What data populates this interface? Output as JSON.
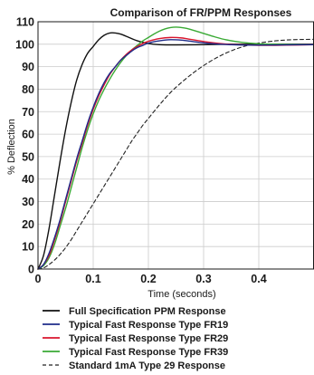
{
  "chart_data": {
    "type": "line",
    "title": "Comparison of FR/PPM Responses",
    "xlabel": "Time (seconds)",
    "ylabel": "% Deflection",
    "xlim": [
      0,
      0.5
    ],
    "ylim": [
      0,
      110
    ],
    "x_ticks": [
      0,
      0.1,
      0.2,
      0.3,
      0.4
    ],
    "x_tick_labels": [
      "0",
      "0.1",
      "0.2",
      "0.3",
      "0.4"
    ],
    "y_ticks": [
      0,
      10,
      20,
      30,
      40,
      50,
      60,
      70,
      80,
      90,
      100,
      110
    ],
    "y_tick_labels": [
      "0",
      "10",
      "20",
      "30",
      "40",
      "50",
      "60",
      "70",
      "80",
      "90",
      "100",
      "110"
    ],
    "grid": true,
    "legend_position": "bottom",
    "series": [
      {
        "name": "Full Specification PPM Response",
        "color": "#111111",
        "dash": "solid",
        "x": [
          0,
          0.01,
          0.02,
          0.03,
          0.04,
          0.05,
          0.06,
          0.07,
          0.08,
          0.09,
          0.1,
          0.11,
          0.12,
          0.13,
          0.14,
          0.15,
          0.16,
          0.18,
          0.2,
          0.22,
          0.25,
          0.3,
          0.35,
          0.4,
          0.45,
          0.5
        ],
        "y": [
          0,
          6,
          18,
          33,
          48,
          62,
          74,
          84,
          91,
          96,
          99,
          102,
          104,
          105,
          105,
          104.5,
          103.5,
          101.5,
          100.3,
          99.8,
          99.7,
          99.8,
          100,
          100,
          100,
          100
        ]
      },
      {
        "name": "Typical Fast Response Type FR19",
        "color": "#1f2d8a",
        "dash": "solid",
        "x": [
          0,
          0.01,
          0.02,
          0.03,
          0.04,
          0.05,
          0.06,
          0.07,
          0.08,
          0.09,
          0.1,
          0.11,
          0.12,
          0.13,
          0.14,
          0.15,
          0.16,
          0.17,
          0.18,
          0.19,
          0.2,
          0.22,
          0.24,
          0.26,
          0.28,
          0.3,
          0.33,
          0.36,
          0.4,
          0.45,
          0.5
        ],
        "y": [
          0,
          2,
          7,
          14,
          22,
          31,
          40,
          49,
          57,
          65,
          72,
          78,
          83,
          87,
          90,
          93,
          95,
          97,
          98.5,
          99.5,
          100.5,
          101.5,
          102,
          101.8,
          101.2,
          100.6,
          100,
          99.7,
          99.6,
          99.7,
          99.8
        ]
      },
      {
        "name": "Typical Fast Response Type FR29",
        "color": "#d9162e",
        "dash": "solid",
        "x": [
          0,
          0.01,
          0.02,
          0.03,
          0.04,
          0.05,
          0.06,
          0.07,
          0.08,
          0.09,
          0.1,
          0.11,
          0.12,
          0.13,
          0.14,
          0.15,
          0.16,
          0.17,
          0.18,
          0.19,
          0.2,
          0.22,
          0.24,
          0.26,
          0.28,
          0.3,
          0.33,
          0.36,
          0.4,
          0.45,
          0.5
        ],
        "y": [
          0,
          2,
          6,
          13,
          21,
          30,
          39,
          48,
          56,
          64,
          71,
          77,
          82,
          86.5,
          90,
          93,
          95.5,
          97.5,
          99,
          100.3,
          101.3,
          102.5,
          103,
          102.8,
          102,
          101.2,
          100.3,
          99.8,
          99.5,
          99.6,
          99.8
        ]
      },
      {
        "name": "Typical Fast Response Type FR39",
        "color": "#3aaa35",
        "dash": "solid",
        "x": [
          0,
          0.01,
          0.02,
          0.03,
          0.04,
          0.05,
          0.06,
          0.07,
          0.08,
          0.09,
          0.1,
          0.11,
          0.12,
          0.13,
          0.14,
          0.15,
          0.16,
          0.17,
          0.18,
          0.19,
          0.2,
          0.21,
          0.22,
          0.23,
          0.24,
          0.25,
          0.26,
          0.27,
          0.28,
          0.3,
          0.32,
          0.34,
          0.37,
          0.4,
          0.45,
          0.5
        ],
        "y": [
          0,
          1.5,
          5,
          11,
          19,
          27,
          36,
          45,
          54,
          62,
          69,
          75,
          80,
          84.5,
          88.5,
          92,
          95,
          97.5,
          99.5,
          101.5,
          103,
          104.5,
          105.8,
          106.8,
          107.4,
          107.6,
          107.4,
          107,
          106.3,
          104.8,
          103.3,
          102,
          100.8,
          100.2,
          99.9,
          99.8
        ]
      },
      {
        "name": "Standard 1mA Type 29 Response",
        "color": "#222222",
        "dash": "dashed",
        "x": [
          0,
          0.01,
          0.02,
          0.03,
          0.04,
          0.05,
          0.06,
          0.07,
          0.08,
          0.09,
          0.1,
          0.11,
          0.12,
          0.13,
          0.14,
          0.15,
          0.16,
          0.17,
          0.18,
          0.19,
          0.2,
          0.22,
          0.24,
          0.26,
          0.28,
          0.3,
          0.32,
          0.34,
          0.36,
          0.38,
          0.4,
          0.43,
          0.46,
          0.5
        ],
        "y": [
          0,
          0.5,
          2,
          4,
          6.5,
          9.5,
          13,
          17,
          21,
          25,
          29,
          33,
          37,
          41,
          45,
          49,
          53,
          57,
          60.5,
          64,
          67,
          73,
          78.5,
          83,
          87,
          90.5,
          93.5,
          96,
          98,
          99.5,
          100.5,
          101.5,
          102,
          102.2
        ]
      }
    ]
  }
}
